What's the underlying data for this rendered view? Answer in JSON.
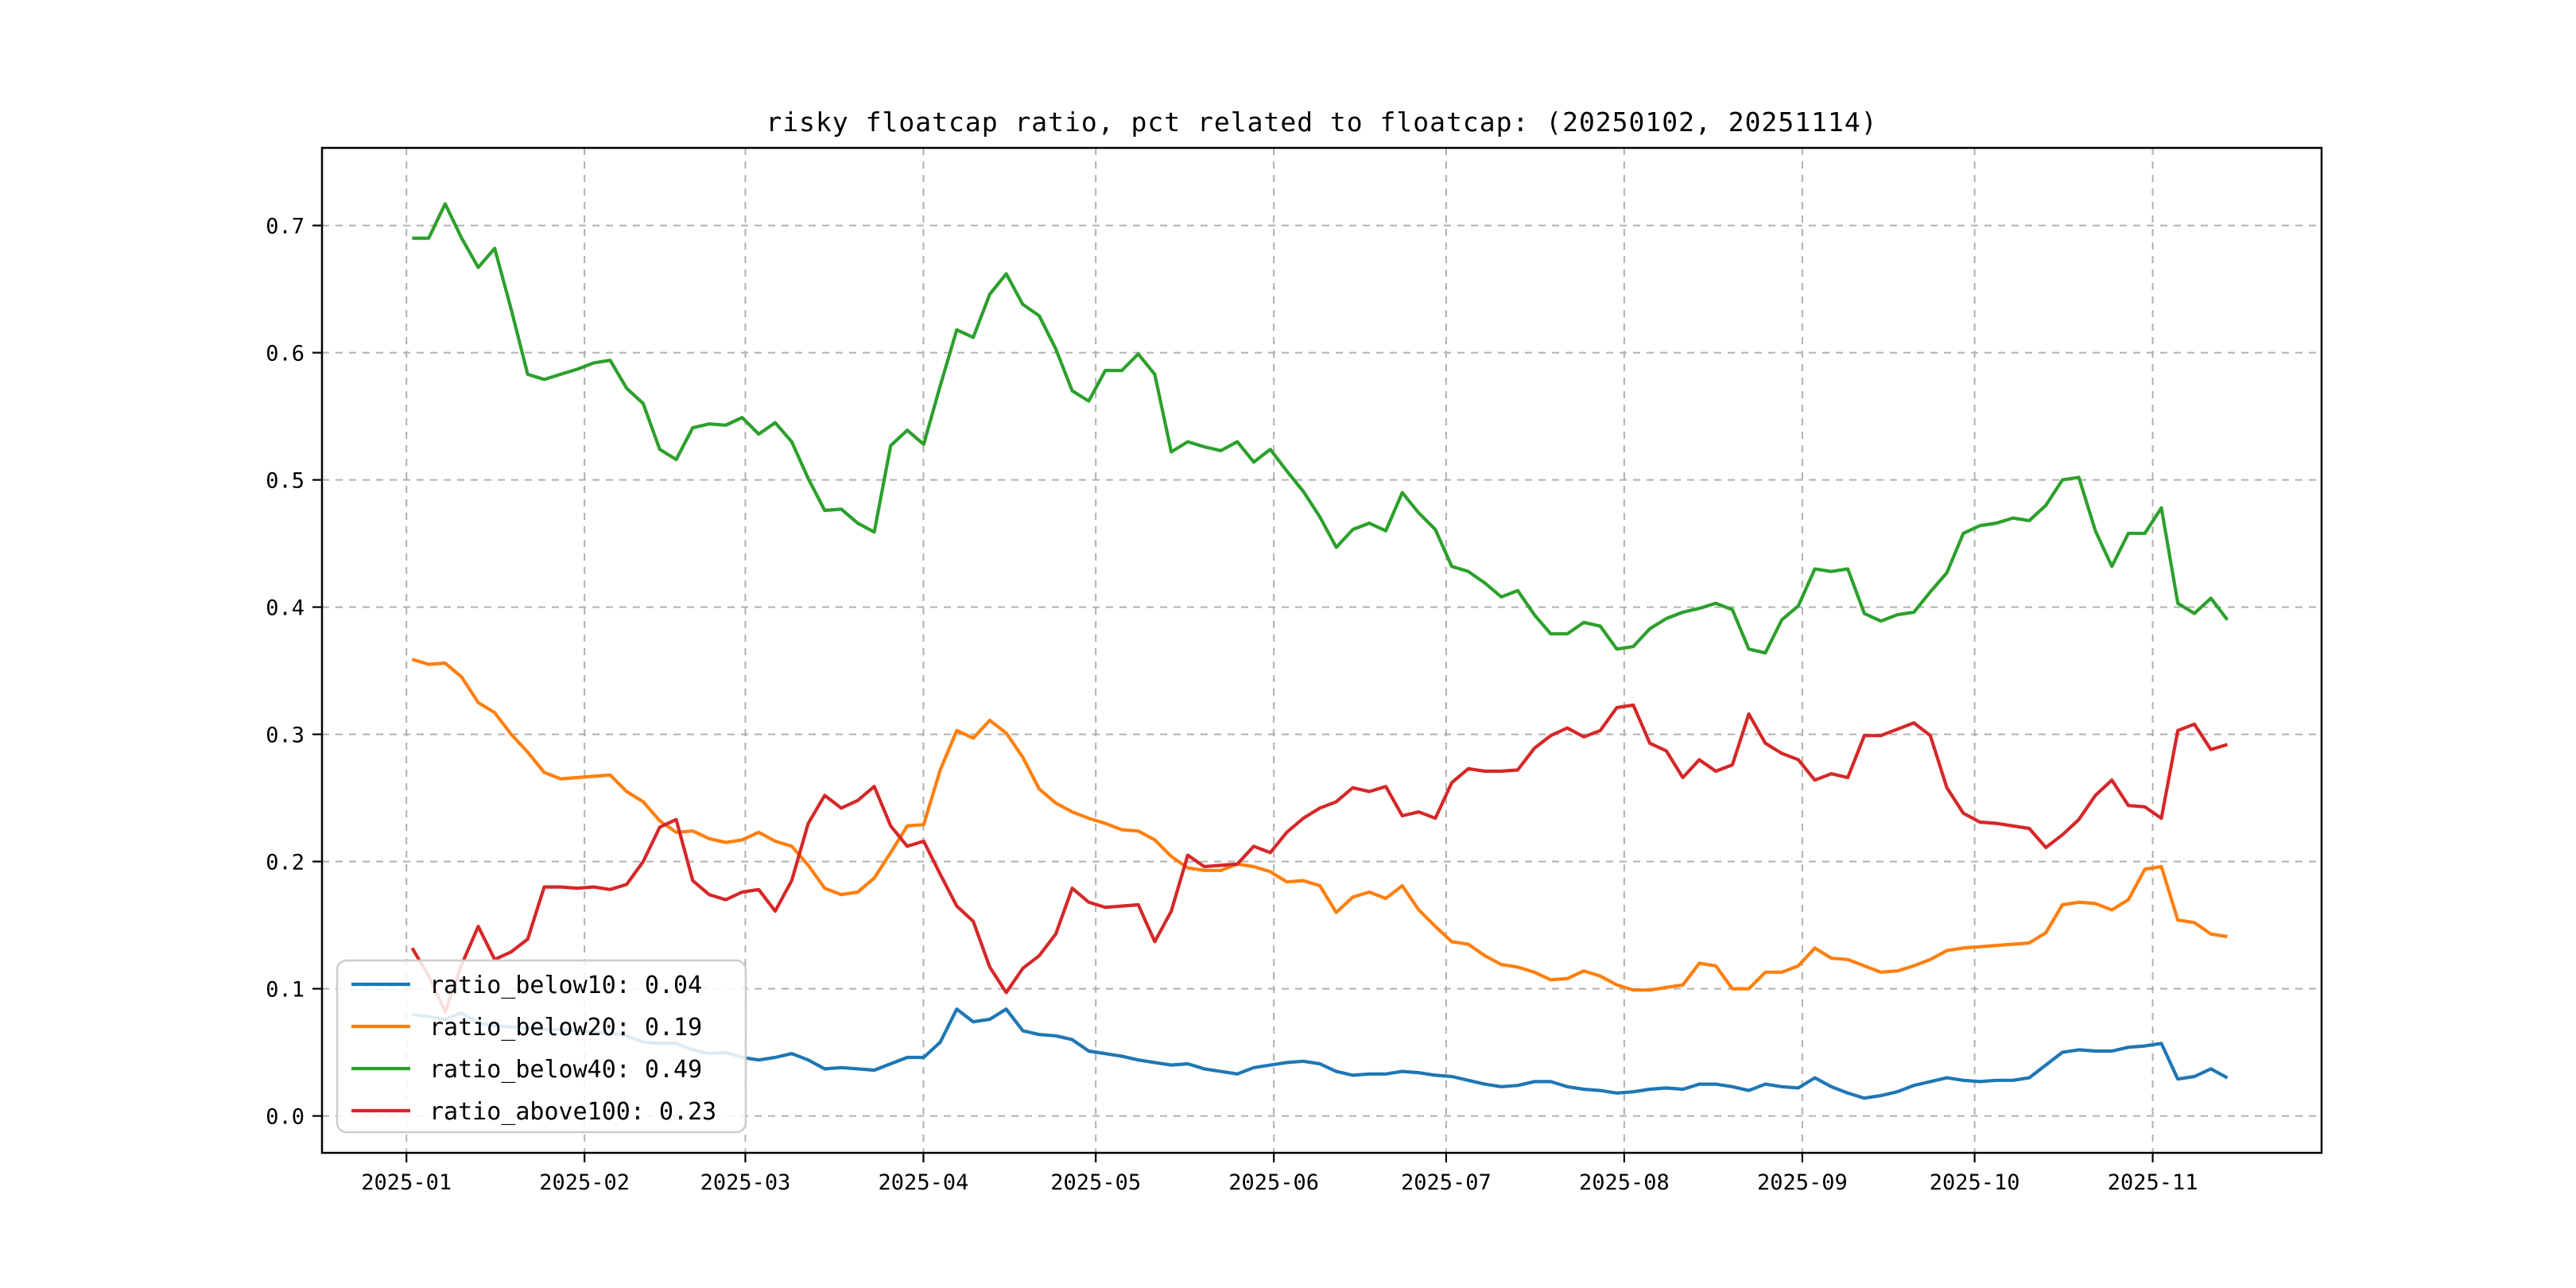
{
  "title": "risky floatcap ratio, pct related to floatcap: (20250102, 20251114)",
  "chart_data": {
    "type": "line",
    "title": "risky floatcap ratio, pct related to floatcap: (20250102, 20251114)",
    "xlabel": "",
    "ylabel": "",
    "grid": "dashed",
    "grid_color": "#b0b0b0",
    "legend_position": "lower left",
    "ylim": [
      -0.029,
      0.761
    ],
    "y_ticks": [
      "0.0",
      "0.1",
      "0.2",
      "0.3",
      "0.4",
      "0.5",
      "0.6",
      "0.7"
    ],
    "x_axis": {
      "day_min": -14.7,
      "day_max": 333.4,
      "tick_day_offsets": [
        0,
        31,
        59,
        90,
        120,
        151,
        181,
        212,
        243,
        273,
        304
      ],
      "tick_labels": [
        "2025-01",
        "2025-02",
        "2025-03",
        "2025-04",
        "2025-05",
        "2025-06",
        "2025-07",
        "2025-08",
        "2025-09",
        "2025-10",
        "2025-11"
      ]
    },
    "series_day_start": 1,
    "series_day_end": 317,
    "x_start_date": "2025-01-02",
    "x_end_date": "2025-11-14",
    "series": [
      {
        "name": "ratio_below10: 0.04",
        "color": "#1f77b4",
        "values": [
          0.08,
          0.078,
          0.076,
          0.081,
          0.073,
          0.071,
          0.07,
          0.069,
          0.068,
          0.068,
          0.067,
          0.066,
          0.065,
          0.063,
          0.058,
          0.057,
          0.057,
          0.052,
          0.049,
          0.05,
          0.046,
          0.044,
          0.046,
          0.049,
          0.044,
          0.037,
          0.038,
          0.037,
          0.036,
          0.041,
          0.046,
          0.046,
          0.058,
          0.084,
          0.074,
          0.076,
          0.084,
          0.067,
          0.064,
          0.063,
          0.06,
          0.051,
          0.049,
          0.047,
          0.044,
          0.042,
          0.04,
          0.041,
          0.037,
          0.035,
          0.033,
          0.038,
          0.04,
          0.042,
          0.043,
          0.041,
          0.035,
          0.032,
          0.033,
          0.033,
          0.035,
          0.034,
          0.032,
          0.031,
          0.028,
          0.025,
          0.023,
          0.024,
          0.027,
          0.027,
          0.023,
          0.021,
          0.02,
          0.018,
          0.019,
          0.021,
          0.022,
          0.021,
          0.025,
          0.025,
          0.023,
          0.02,
          0.025,
          0.023,
          0.022,
          0.03,
          0.023,
          0.018,
          0.014,
          0.016,
          0.019,
          0.024,
          0.027,
          0.03,
          0.028,
          0.027,
          0.028,
          0.028,
          0.03,
          0.04,
          0.05,
          0.052,
          0.051,
          0.051,
          0.054,
          0.055,
          0.057,
          0.029,
          0.031,
          0.037,
          0.03
        ]
      },
      {
        "name": "ratio_below20: 0.19",
        "color": "#ff7f0e",
        "values": [
          0.359,
          0.355,
          0.356,
          0.345,
          0.325,
          0.317,
          0.3,
          0.286,
          0.27,
          0.265,
          0.266,
          0.267,
          0.268,
          0.255,
          0.247,
          0.232,
          0.223,
          0.224,
          0.218,
          0.215,
          0.217,
          0.223,
          0.216,
          0.212,
          0.197,
          0.179,
          0.174,
          0.176,
          0.187,
          0.207,
          0.228,
          0.229,
          0.272,
          0.303,
          0.297,
          0.311,
          0.301,
          0.282,
          0.257,
          0.246,
          0.239,
          0.234,
          0.23,
          0.225,
          0.224,
          0.217,
          0.204,
          0.195,
          0.193,
          0.193,
          0.198,
          0.196,
          0.192,
          0.184,
          0.185,
          0.181,
          0.16,
          0.172,
          0.176,
          0.171,
          0.181,
          0.162,
          0.149,
          0.137,
          0.135,
          0.126,
          0.119,
          0.117,
          0.113,
          0.107,
          0.108,
          0.114,
          0.11,
          0.103,
          0.099,
          0.099,
          0.101,
          0.103,
          0.12,
          0.118,
          0.1,
          0.1,
          0.113,
          0.113,
          0.118,
          0.132,
          0.124,
          0.123,
          0.118,
          0.113,
          0.114,
          0.118,
          0.123,
          0.13,
          0.132,
          0.133,
          0.134,
          0.135,
          0.136,
          0.144,
          0.166,
          0.168,
          0.167,
          0.162,
          0.17,
          0.194,
          0.196,
          0.154,
          0.152,
          0.143,
          0.141
        ]
      },
      {
        "name": "ratio_below40: 0.49",
        "color": "#2ca02c",
        "values": [
          0.69,
          0.69,
          0.717,
          0.69,
          0.667,
          0.682,
          0.634,
          0.583,
          0.579,
          0.583,
          0.587,
          0.592,
          0.594,
          0.572,
          0.56,
          0.524,
          0.516,
          0.541,
          0.544,
          0.543,
          0.549,
          0.536,
          0.545,
          0.53,
          0.501,
          0.476,
          0.477,
          0.466,
          0.459,
          0.527,
          0.539,
          0.528,
          0.574,
          0.618,
          0.612,
          0.646,
          0.662,
          0.638,
          0.629,
          0.603,
          0.57,
          0.562,
          0.586,
          0.586,
          0.599,
          0.583,
          0.522,
          0.53,
          0.526,
          0.523,
          0.53,
          0.514,
          0.524,
          0.507,
          0.491,
          0.471,
          0.447,
          0.461,
          0.466,
          0.46,
          0.49,
          0.474,
          0.461,
          0.432,
          0.428,
          0.419,
          0.408,
          0.413,
          0.394,
          0.379,
          0.379,
          0.388,
          0.385,
          0.367,
          0.369,
          0.383,
          0.391,
          0.396,
          0.399,
          0.403,
          0.398,
          0.367,
          0.364,
          0.39,
          0.401,
          0.43,
          0.428,
          0.43,
          0.395,
          0.389,
          0.394,
          0.396,
          0.412,
          0.427,
          0.458,
          0.464,
          0.466,
          0.47,
          0.468,
          0.48,
          0.5,
          0.502,
          0.46,
          0.432,
          0.458,
          0.458,
          0.478,
          0.403,
          0.395,
          0.407,
          0.39
        ]
      },
      {
        "name": "ratio_above100: 0.23",
        "color": "#d62728",
        "values": [
          0.132,
          0.11,
          0.082,
          0.119,
          0.149,
          0.123,
          0.129,
          0.139,
          0.18,
          0.18,
          0.179,
          0.18,
          0.178,
          0.182,
          0.2,
          0.227,
          0.233,
          0.185,
          0.174,
          0.17,
          0.176,
          0.178,
          0.161,
          0.185,
          0.23,
          0.252,
          0.242,
          0.248,
          0.259,
          0.228,
          0.212,
          0.216,
          0.19,
          0.165,
          0.153,
          0.117,
          0.097,
          0.116,
          0.126,
          0.143,
          0.179,
          0.168,
          0.164,
          0.165,
          0.166,
          0.137,
          0.161,
          0.205,
          0.196,
          0.197,
          0.198,
          0.212,
          0.207,
          0.223,
          0.234,
          0.242,
          0.247,
          0.258,
          0.255,
          0.259,
          0.236,
          0.239,
          0.234,
          0.262,
          0.273,
          0.271,
          0.271,
          0.272,
          0.289,
          0.299,
          0.305,
          0.298,
          0.303,
          0.321,
          0.323,
          0.293,
          0.287,
          0.266,
          0.28,
          0.271,
          0.276,
          0.316,
          0.293,
          0.285,
          0.28,
          0.264,
          0.269,
          0.266,
          0.299,
          0.299,
          0.304,
          0.309,
          0.299,
          0.258,
          0.238,
          0.231,
          0.23,
          0.228,
          0.226,
          0.211,
          0.221,
          0.233,
          0.252,
          0.264,
          0.244,
          0.243,
          0.234,
          0.303,
          0.308,
          0.288,
          0.292
        ]
      }
    ],
    "legend": {
      "entries": [
        "ratio_below10: 0.04",
        "ratio_below20: 0.19",
        "ratio_below40: 0.49",
        "ratio_above100: 0.23"
      ],
      "colors": [
        "#1f77b4",
        "#ff7f0e",
        "#2ca02c",
        "#d62728"
      ]
    }
  }
}
